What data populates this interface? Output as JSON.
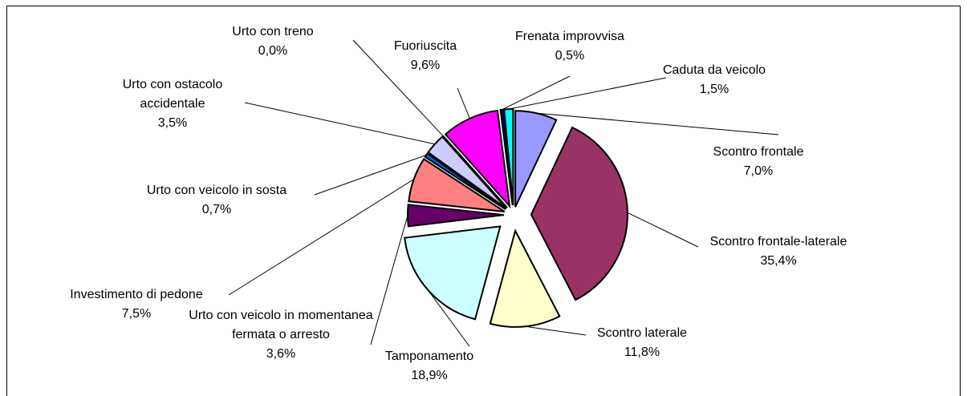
{
  "chart_data": {
    "type": "pie",
    "categories": [
      "Scontro frontale",
      "Scontro frontale-laterale",
      "Scontro laterale",
      "Tamponamento",
      "Urto con veicolo in momentanea fermata o arresto",
      "Investimento di pedone",
      "Urto con veicolo in sosta",
      "Urto con ostacolo accidentale",
      "Urto con treno",
      "Fuoriuscita",
      "Frenata improvvisa",
      "Caduta da veicolo"
    ],
    "values": [
      7.0,
      35.4,
      11.8,
      18.9,
      3.6,
      7.5,
      0.7,
      3.5,
      0.0,
      9.6,
      0.5,
      1.5
    ],
    "value_labels": [
      "7,0%",
      "35,4%",
      "11,8%",
      "18,9%",
      "3,6%",
      "7,5%",
      "0,7%",
      "3,5%",
      "0,0%",
      "9,6%",
      "0,5%",
      "1,5%"
    ],
    "colors": [
      "#9999ff",
      "#993366",
      "#ffffcc",
      "#ccffff",
      "#660066",
      "#ff8080",
      "#0066cc",
      "#ccccff",
      "#000080",
      "#ff00ff",
      "#000080",
      "#00ffff"
    ]
  }
}
